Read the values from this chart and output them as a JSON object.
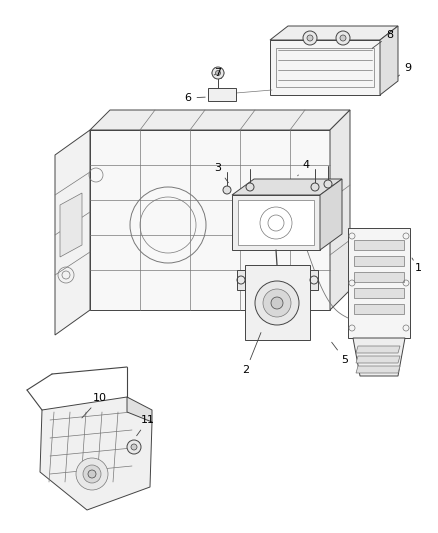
{
  "bg_color": "#ffffff",
  "fig_width": 4.38,
  "fig_height": 5.33,
  "dpi": 100,
  "label_fontsize": 8,
  "label_color": "#000000",
  "line_color": "#444444",
  "thin_color": "#777777"
}
